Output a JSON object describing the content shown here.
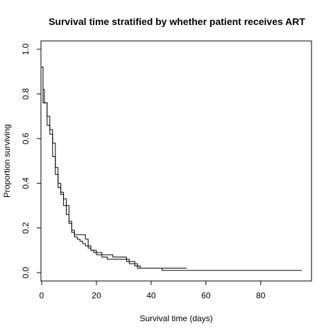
{
  "chart_data": {
    "type": "line",
    "title": "Survival time stratified by whether patient receives ART",
    "xlabel": "Survival time (days)",
    "ylabel": "Proportion surviving",
    "xlim": [
      0,
      95
    ],
    "ylim": [
      0,
      1.0
    ],
    "x_ticks": [
      "0",
      "20",
      "40",
      "60",
      "80"
    ],
    "x_tick_values": [
      0,
      20,
      40,
      60,
      80
    ],
    "y_ticks": [
      "0.0",
      "0.2",
      "0.4",
      "0.6",
      "0.8",
      "1.0"
    ],
    "y_tick_values": [
      0.0,
      0.2,
      0.4,
      0.6,
      0.8,
      1.0
    ],
    "grid": false,
    "legend": "none",
    "step": true,
    "series": [
      {
        "x": [
          0,
          0.5,
          1,
          2,
          3,
          4,
          5,
          6,
          7,
          8,
          9,
          10,
          11,
          12,
          14,
          16,
          17,
          18,
          20,
          22,
          24,
          26,
          31,
          34,
          36,
          53
        ],
        "y": [
          0.92,
          0.82,
          0.76,
          0.7,
          0.64,
          0.58,
          0.47,
          0.4,
          0.35,
          0.33,
          0.3,
          0.22,
          0.19,
          0.17,
          0.17,
          0.15,
          0.12,
          0.1,
          0.09,
          0.08,
          0.08,
          0.07,
          0.05,
          0.03,
          0.02,
          0.02
        ]
      },
      {
        "x": [
          0,
          0.5,
          1,
          2,
          3,
          4,
          5,
          6,
          7,
          8,
          9,
          10,
          11,
          12,
          13,
          14,
          15,
          16,
          17,
          18,
          19,
          20,
          22,
          24,
          26,
          32,
          35,
          44,
          95
        ],
        "y": [
          0.92,
          0.76,
          0.76,
          0.66,
          0.62,
          0.52,
          0.44,
          0.38,
          0.36,
          0.3,
          0.26,
          0.23,
          0.18,
          0.16,
          0.15,
          0.14,
          0.13,
          0.12,
          0.11,
          0.1,
          0.09,
          0.08,
          0.07,
          0.06,
          0.06,
          0.04,
          0.02,
          0.01,
          0.01
        ]
      }
    ]
  }
}
